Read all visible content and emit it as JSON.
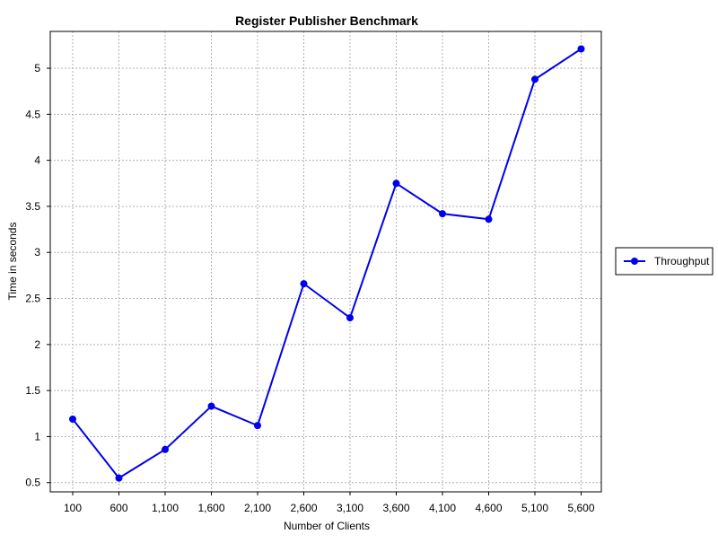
{
  "chart_data": {
    "type": "line",
    "title": "Register Publisher Benchmark",
    "xlabel": "Number of Clients",
    "ylabel": "Time in seconds",
    "categories": [
      "100",
      "600",
      "1,100",
      "1,600",
      "2,100",
      "2,600",
      "3,100",
      "3,600",
      "4,100",
      "4,600",
      "5,100",
      "5,600"
    ],
    "series": [
      {
        "name": "Throughput",
        "color": "#0000ee",
        "values": [
          1.19,
          0.55,
          0.86,
          1.33,
          1.12,
          2.66,
          2.29,
          3.75,
          3.42,
          3.36,
          4.88,
          5.21
        ]
      }
    ],
    "yticks": [
      0.5,
      1,
      1.5,
      2,
      2.5,
      3,
      3.5,
      4,
      4.5,
      5
    ],
    "ytick_labels": [
      "0.5",
      "1",
      "1.5",
      "2",
      "2.5",
      "3",
      "3.5",
      "4",
      "4.5",
      "5"
    ],
    "ylim": [
      0.4,
      5.4
    ],
    "grid": true,
    "legend": "right",
    "grid_color": "#b0b0b0"
  }
}
